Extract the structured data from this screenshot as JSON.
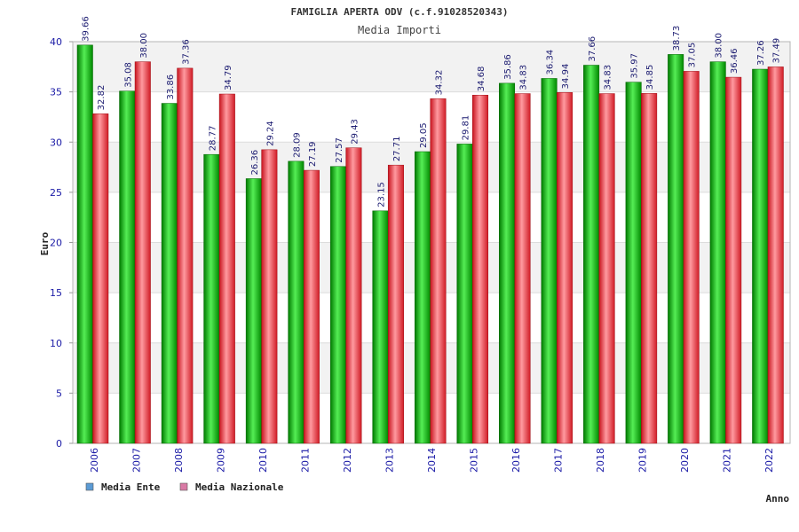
{
  "chart_data": {
    "type": "bar",
    "title": "FAMIGLIA APERTA ODV (c.f.91028520343)",
    "subtitle": "Media Importi",
    "xlabel": "Anno",
    "ylabel": "Euro",
    "ylim": [
      0,
      40
    ],
    "yticks": [
      0,
      5,
      10,
      15,
      20,
      25,
      30,
      35,
      40
    ],
    "grid": true,
    "legend_position": "bottom-left",
    "categories": [
      "2006",
      "2007",
      "2008",
      "2009",
      "2010",
      "2011",
      "2012",
      "2013",
      "2014",
      "2015",
      "2016",
      "2017",
      "2018",
      "2019",
      "2020",
      "2021",
      "2022"
    ],
    "series": [
      {
        "name": "Media Ente",
        "color": "#00b000",
        "legend_color": "#5b9bd5",
        "values": [
          39.66,
          35.08,
          33.86,
          28.77,
          26.36,
          28.09,
          27.57,
          23.15,
          29.05,
          29.81,
          35.86,
          36.34,
          37.66,
          35.97,
          38.73,
          38.0,
          37.26
        ],
        "labels": [
          "39.66",
          "35.08",
          "33.86",
          "28.77",
          "26.36",
          "28.09",
          "27.57",
          "23.15",
          "29.05",
          "29.81",
          "35.86",
          "36.34",
          "37.66",
          "35.97",
          "38.73",
          "38.00",
          "37.26"
        ]
      },
      {
        "name": "Media Nazionale",
        "color": "#e8303a",
        "legend_color": "#d97aa5",
        "values": [
          32.82,
          38.0,
          37.36,
          34.79,
          29.24,
          27.19,
          29.43,
          27.71,
          34.32,
          34.68,
          34.83,
          34.94,
          34.83,
          34.85,
          37.05,
          36.46,
          37.49
        ],
        "labels": [
          "32.82",
          "38.00",
          "37.36",
          "34.79",
          "29.24",
          "27.19",
          "29.43",
          "27.71",
          "34.32",
          "34.68",
          "34.83",
          "34.94",
          "34.83",
          "34.85",
          "37.05",
          "36.46",
          "37.49"
        ]
      }
    ]
  }
}
